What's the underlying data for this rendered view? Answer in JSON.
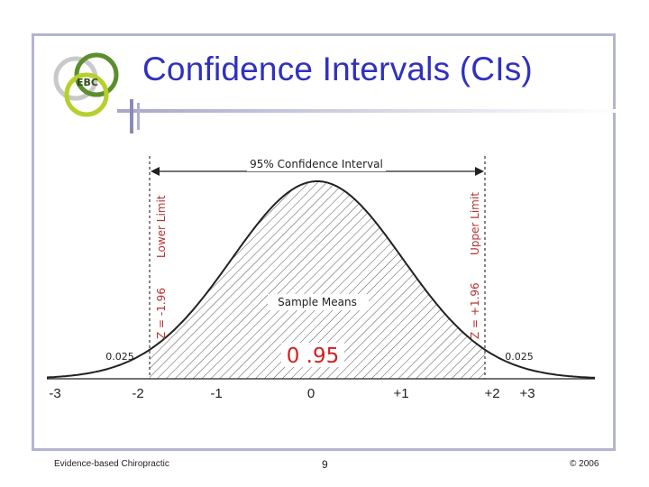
{
  "title": "Confidence Intervals (CIs)",
  "logo": {
    "text": "EBC",
    "colors": {
      "gray": "#c9c9c9",
      "green": "#5c8f2c",
      "lime": "#b7cf2c"
    }
  },
  "figure": {
    "ci_label": "95% Confidence Interval",
    "lower_limit_label": "Lower Limit",
    "upper_limit_label": "Upper Limit",
    "lower_z_label": "Z = -1.96",
    "upper_z_label": "Z = +1.96",
    "center_label": "Sample Means",
    "center_value": "0 .95",
    "left_tail": "0.025",
    "right_tail": "0.025",
    "center_value_color": "#d22020",
    "limit_label_color": "#b83232"
  },
  "ticks": [
    "-3",
    "-2",
    "-1",
    "0",
    "+1",
    "+2",
    "+3"
  ],
  "footer": {
    "left": "Evidence-based Chiropractic",
    "page": "9",
    "right": "© 2006"
  }
}
